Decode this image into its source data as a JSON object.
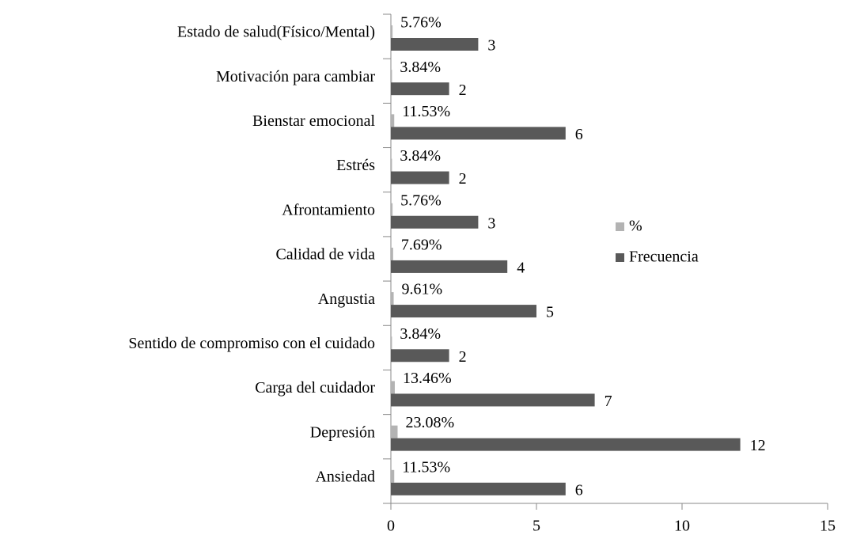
{
  "chart_data": {
    "type": "bar",
    "orientation": "horizontal",
    "categories": [
      "Estado de salud(Físico/Mental)",
      "Motivación para cambiar",
      "Bienstar emocional",
      "Estrés",
      "Afrontamiento",
      "Calidad de vida",
      "Angustia",
      "Sentido de compromiso con el cuidado",
      "Carga del cuidador",
      "Depresión",
      "Ansiedad"
    ],
    "series": [
      {
        "name": "%",
        "color": "#b3b3b3",
        "values": [
          0.0576,
          0.0384,
          0.1153,
          0.0384,
          0.0576,
          0.0769,
          0.0961,
          0.0384,
          0.1346,
          0.2308,
          0.1153
        ],
        "value_labels": [
          "5.76%",
          "3.84%",
          "11.53%",
          "3.84%",
          "5.76%",
          "7.69%",
          "9.61%",
          "3.84%",
          "13.46%",
          "23.08%",
          "11.53%"
        ]
      },
      {
        "name": "Frecuencia",
        "color": "#595959",
        "values": [
          3,
          2,
          6,
          2,
          3,
          4,
          5,
          2,
          7,
          12,
          6
        ]
      }
    ],
    "xlim": [
      0,
      15
    ],
    "xticks": [
      0,
      5,
      10,
      15
    ],
    "legend": "right"
  }
}
